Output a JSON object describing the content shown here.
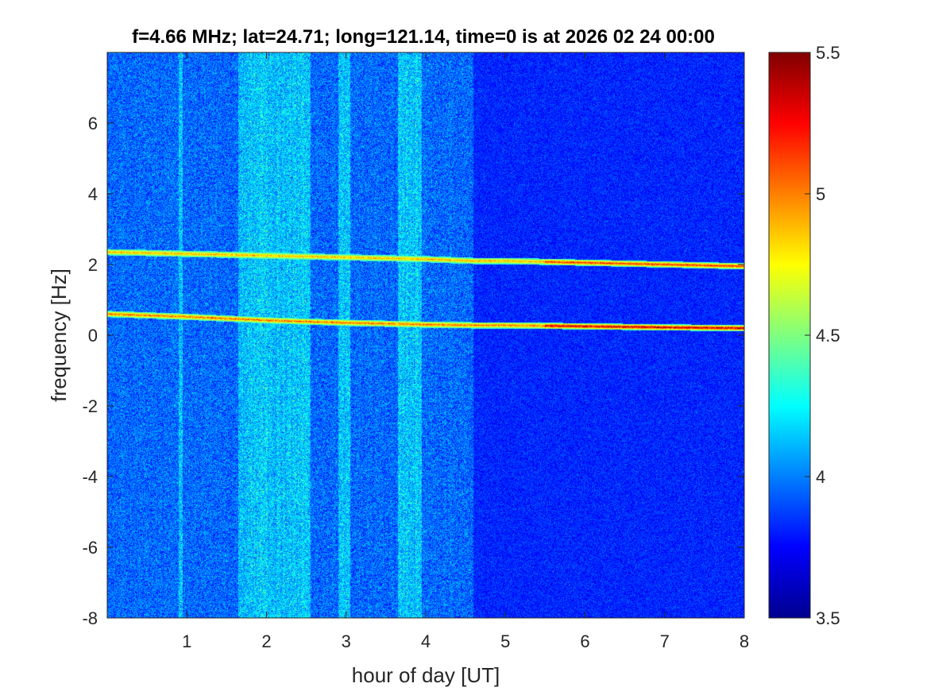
{
  "chart_data": {
    "type": "heatmap",
    "title": "f=4.66 MHz;  lat=24.71; long=121.14, time=0 is at 2026 02 24 00:00",
    "xlabel": "hour of day [UT]",
    "ylabel": "frequency [Hz]",
    "xlim": [
      0,
      8
    ],
    "ylim": [
      -8,
      8
    ],
    "x_ticks": [
      1,
      2,
      3,
      4,
      5,
      6,
      7,
      8
    ],
    "y_ticks": [
      -8,
      -6,
      -4,
      -2,
      0,
      2,
      4,
      6
    ],
    "x_tick_labels": [
      "1",
      "2",
      "3",
      "4",
      "5",
      "6",
      "7",
      "8"
    ],
    "y_tick_labels": [
      "-8",
      "-6",
      "-4",
      "-2",
      "0",
      "2",
      "4",
      "6"
    ],
    "colorbar": {
      "colormap": "jet",
      "clim": [
        3.5,
        5.5
      ],
      "ticks": [
        3.5,
        4,
        4.5,
        5,
        5.5
      ],
      "tick_labels": [
        "3.5",
        "4",
        "4.5",
        "5",
        "5.5"
      ]
    },
    "grid": false,
    "traces": [
      {
        "description_key": "upper_doppler",
        "x": [
          0,
          1,
          2,
          3,
          4,
          4.6,
          5,
          6,
          7,
          8
        ],
        "y": [
          2.35,
          2.3,
          2.25,
          2.2,
          2.15,
          2.1,
          2.1,
          2.05,
          2.0,
          1.95
        ]
      },
      {
        "description_key": "lower_doppler",
        "x": [
          0,
          1,
          2,
          3,
          4,
          4.6,
          5,
          6,
          7,
          8
        ],
        "y": [
          0.6,
          0.52,
          0.42,
          0.35,
          0.3,
          0.28,
          0.28,
          0.25,
          0.22,
          0.2
        ]
      }
    ],
    "noise_bands_hours": [
      [
        0.9,
        0.95
      ],
      [
        1.65,
        2.0
      ],
      [
        2.0,
        2.55
      ],
      [
        2.9,
        3.05
      ],
      [
        3.65,
        3.95
      ]
    ],
    "quiet_after_hour": 4.6
  }
}
